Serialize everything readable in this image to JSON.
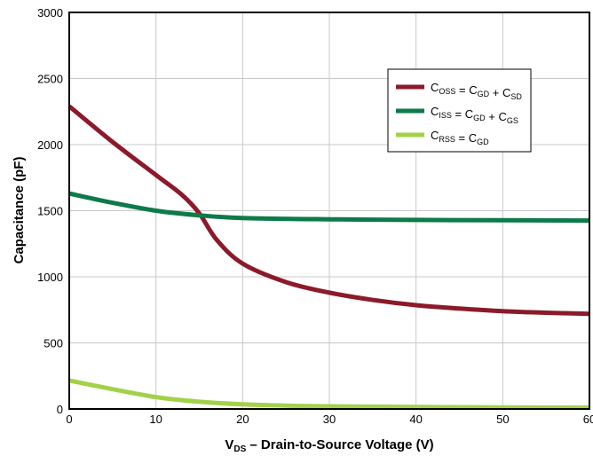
{
  "chart_data": {
    "type": "line",
    "xlabel_main": "V",
    "xlabel_sub": "DS",
    "xlabel_rest": " – Drain-to-Source Voltage (V)",
    "ylabel": "Capacitance (pF)",
    "xlim": [
      0,
      60
    ],
    "ylim": [
      0,
      3000
    ],
    "x_ticks": [
      "0",
      "10",
      "20",
      "30",
      "40",
      "50",
      "60"
    ],
    "y_ticks": [
      "0",
      "500",
      "1000",
      "1500",
      "2000",
      "2500",
      "3000"
    ],
    "grid": true,
    "legend_position": "top-right",
    "series": [
      {
        "name": "COSS = CGD + CSD",
        "legend": {
          "a": "C",
          "as": "OSS",
          "b": " = C",
          "bs": "GD",
          "c": " + C",
          "cs": "SD"
        },
        "color": "#8b1a2b",
        "x": [
          0,
          5,
          10,
          13,
          15,
          17,
          20,
          25,
          30,
          35,
          40,
          45,
          50,
          55,
          60
        ],
        "y": [
          2290,
          2020,
          1770,
          1620,
          1480,
          1280,
          1100,
          960,
          880,
          825,
          785,
          760,
          740,
          728,
          720
        ]
      },
      {
        "name": "CISS = CGD + CGS",
        "legend": {
          "a": "C",
          "as": "ISS",
          "b": " = C",
          "bs": "GD",
          "c": " + C",
          "cs": "GS"
        },
        "color": "#0d7a4a",
        "x": [
          0,
          5,
          10,
          15,
          20,
          30,
          40,
          50,
          60
        ],
        "y": [
          1630,
          1560,
          1500,
          1465,
          1445,
          1435,
          1430,
          1428,
          1425
        ]
      },
      {
        "name": "CRSS = CGD",
        "legend": {
          "a": "C",
          "as": "RSS",
          "b": " = C",
          "bs": "GD",
          "c": "",
          "cs": ""
        },
        "color": "#a3d149",
        "x": [
          0,
          5,
          10,
          15,
          20,
          25,
          30,
          40,
          50,
          60
        ],
        "y": [
          215,
          150,
          90,
          55,
          35,
          25,
          20,
          15,
          12,
          10
        ]
      }
    ]
  }
}
